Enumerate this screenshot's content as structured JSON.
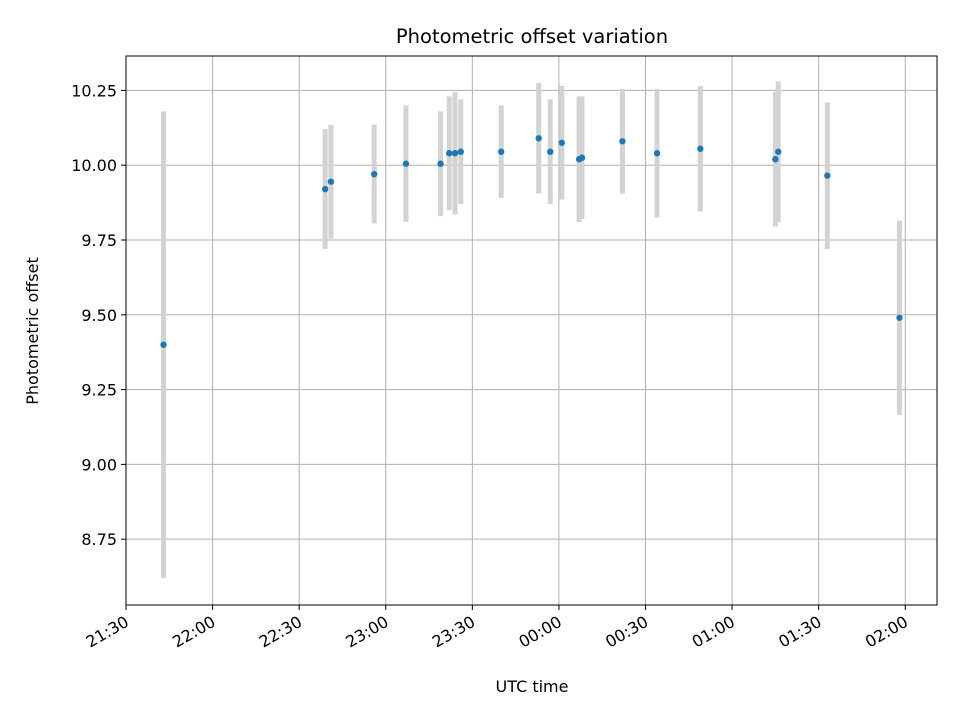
{
  "chart_data": {
    "type": "scatter",
    "title": "Photometric offset variation",
    "xlabel": "UTC time",
    "ylabel": "Photometric offset",
    "x_ticks": [
      "21:30",
      "22:00",
      "22:30",
      "23:00",
      "23:30",
      "00:00",
      "00:30",
      "01:00",
      "01:30",
      "02:00"
    ],
    "y_ticks": [
      "8.75",
      "9.00",
      "9.25",
      "9.50",
      "9.75",
      "10.00",
      "10.25"
    ],
    "grid": true,
    "colors": {
      "point": "#1f77b4",
      "errorbar": "#d3d3d3",
      "grid": "#b0b0b0"
    },
    "series": [
      {
        "points": [
          {
            "x": "21:43",
            "y": 9.4,
            "yerr": 0.78
          },
          {
            "x": "22:39",
            "y": 9.92,
            "yerr": 0.2
          },
          {
            "x": "22:41",
            "y": 9.945,
            "yerr": 0.19
          },
          {
            "x": "22:56",
            "y": 9.97,
            "yerr": 0.165
          },
          {
            "x": "23:07",
            "y": 10.005,
            "yerr": 0.195
          },
          {
            "x": "23:19",
            "y": 10.005,
            "yerr": 0.175
          },
          {
            "x": "23:22",
            "y": 10.04,
            "yerr": 0.19
          },
          {
            "x": "23:24",
            "y": 10.04,
            "yerr": 0.205
          },
          {
            "x": "23:26",
            "y": 10.045,
            "yerr": 0.175
          },
          {
            "x": "23:40",
            "y": 10.045,
            "yerr": 0.155
          },
          {
            "x": "23:53",
            "y": 10.09,
            "yerr": 0.185
          },
          {
            "x": "23:57",
            "y": 10.045,
            "yerr": 0.175
          },
          {
            "x": "00:01",
            "y": 10.075,
            "yerr": 0.19
          },
          {
            "x": "00:07",
            "y": 10.02,
            "yerr": 0.21
          },
          {
            "x": "00:08",
            "y": 10.025,
            "yerr": 0.205
          },
          {
            "x": "00:22",
            "y": 10.08,
            "yerr": 0.175
          },
          {
            "x": "00:34",
            "y": 10.04,
            "yerr": 0.215
          },
          {
            "x": "00:49",
            "y": 10.055,
            "yerr": 0.21
          },
          {
            "x": "01:15",
            "y": 10.02,
            "yerr": 0.225
          },
          {
            "x": "01:16",
            "y": 10.045,
            "yerr": 0.235
          },
          {
            "x": "01:33",
            "y": 9.965,
            "yerr": 0.245
          },
          {
            "x": "01:58",
            "y": 9.49,
            "yerr": 0.325
          }
        ]
      }
    ],
    "xlim": [
      "21:30",
      "02:11"
    ],
    "ylim": [
      8.53,
      10.365
    ]
  }
}
